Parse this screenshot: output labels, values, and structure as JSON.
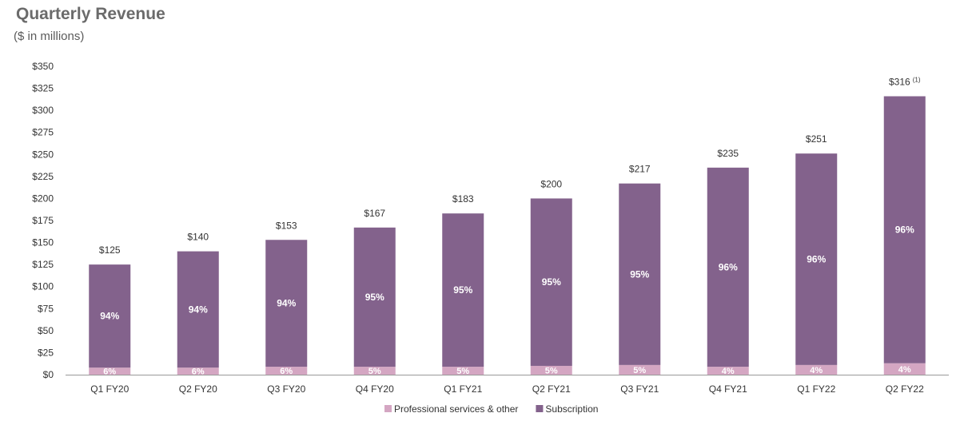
{
  "chart_data": {
    "type": "bar",
    "stacked": true,
    "title": "Quarterly Revenue",
    "subtitle": "($ in millions)",
    "categories": [
      "Q1 FY20",
      "Q2 FY20",
      "Q3 FY20",
      "Q4 FY20",
      "Q1 FY21",
      "Q2 FY21",
      "Q3 FY21",
      "Q4 FY21",
      "Q1 FY22",
      "Q2 FY22"
    ],
    "totals": [
      125,
      140,
      153,
      167,
      183,
      200,
      217,
      235,
      251,
      316
    ],
    "total_labels": [
      "$125",
      "$140",
      "$153",
      "$167",
      "$183",
      "$200",
      "$217",
      "$235",
      "$251",
      "$316"
    ],
    "total_footnotes": [
      "",
      "",
      "",
      "",
      "",
      "",
      "",
      "",
      "",
      "(1)"
    ],
    "series": [
      {
        "name": "Professional services & other",
        "color": "#d4a6c2",
        "percent_labels": [
          "6%",
          "6%",
          "6%",
          "5%",
          "5%",
          "5%",
          "5%",
          "4%",
          "4%",
          "4%"
        ],
        "values": [
          8,
          8,
          9,
          9,
          9,
          10,
          11,
          9,
          11,
          13
        ]
      },
      {
        "name": "Subscription",
        "color": "#83628c",
        "percent_labels": [
          "94%",
          "94%",
          "94%",
          "95%",
          "95%",
          "95%",
          "95%",
          "96%",
          "96%",
          "96%"
        ],
        "values": [
          117,
          132,
          144,
          158,
          174,
          190,
          206,
          226,
          240,
          303
        ]
      }
    ],
    "ylim": [
      0,
      350
    ],
    "yticks": [
      0,
      25,
      50,
      75,
      100,
      125,
      150,
      175,
      200,
      225,
      250,
      275,
      300,
      325,
      350
    ],
    "ytick_labels": [
      "$0",
      "$25",
      "$50",
      "$75",
      "$100",
      "$125",
      "$150",
      "$175",
      "$200",
      "$225",
      "$250",
      "$275",
      "$300",
      "$325",
      "$350"
    ],
    "grid": false,
    "legend_position": "bottom-center"
  }
}
